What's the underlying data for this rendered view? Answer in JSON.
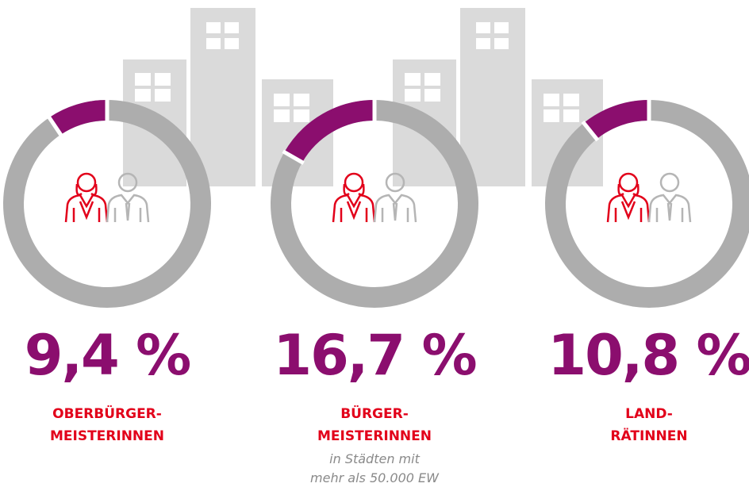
{
  "chart_data": [
    {
      "type": "donut",
      "values": [
        9.4
      ],
      "value_labels": [
        "9,4 %"
      ],
      "color": "#8b0e6e",
      "label_lines": [
        "OBERBÜRGER-",
        "MEISTERINNEN"
      ]
    },
    {
      "type": "donut",
      "values": [
        16.7
      ],
      "value_labels": [
        "16,7 %"
      ],
      "color": "#8b0e6e",
      "label_lines": [
        "BÜRGER-",
        "MEISTERINNEN"
      ],
      "note_lines": [
        "in Städten mit",
        "mehr als 50.000 EW"
      ]
    },
    {
      "type": "donut",
      "values": [
        10.8
      ],
      "value_labels": [
        "10,8 %"
      ],
      "color": "#8b0e6e",
      "label_lines": [
        "LAND-",
        "RÄTINNEN"
      ]
    }
  ]
}
